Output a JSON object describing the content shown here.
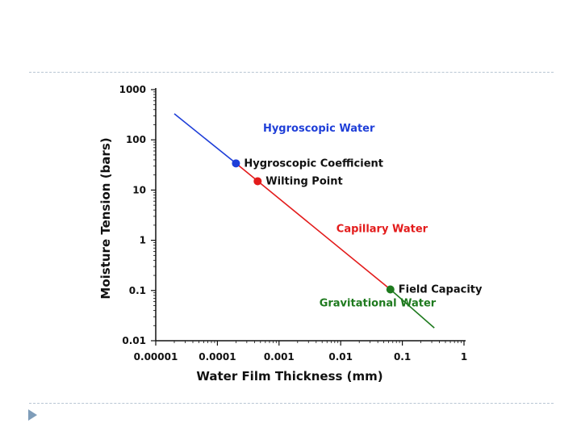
{
  "slide": {
    "bullet_color": "#7f9db9",
    "rule_color": "#b9c6d3",
    "bullet_icon": "triangle-right-icon"
  },
  "chart_data": {
    "type": "line",
    "title": "",
    "xlabel": "Water Film Thickness (mm)",
    "ylabel": "Moisture Tension (bars)",
    "x_scale": "log",
    "y_scale": "log",
    "xlim": [
      1e-05,
      1
    ],
    "ylim": [
      0.01,
      1000
    ],
    "x_ticks": [
      1e-05,
      0.0001,
      0.001,
      0.01,
      0.1,
      1
    ],
    "x_tick_labels": [
      "0.00001",
      "0.0001",
      "0.001",
      "0.01",
      "0.1",
      "1"
    ],
    "y_ticks": [
      0.01,
      0.1,
      1,
      10,
      100,
      1000
    ],
    "y_tick_labels": [
      "0.01",
      "0.1",
      "1",
      "10",
      "100",
      "1000"
    ],
    "grid": false,
    "series": [
      {
        "name": "Hygroscopic Water",
        "color": "#1f3fd8",
        "x": [
          2e-05,
          0.0002
        ],
        "y": [
          330,
          34
        ]
      },
      {
        "name": "Capillary Water",
        "color": "#e31b1b",
        "x": [
          0.0002,
          0.064
        ],
        "y": [
          34,
          0.105
        ]
      },
      {
        "name": "Gravitational Water",
        "color": "#1e7a1e",
        "x": [
          0.064,
          0.33
        ],
        "y": [
          0.105,
          0.018
        ]
      }
    ],
    "points": [
      {
        "label": "Hygroscopic Coefficient",
        "x": 0.0002,
        "y": 34,
        "color": "#1f3fd8"
      },
      {
        "label": "Wilting Point",
        "x": 0.00045,
        "y": 15,
        "color": "#e31b1b"
      },
      {
        "label": "Field Capacity",
        "x": 0.064,
        "y": 0.105,
        "color": "#1e7a1e"
      }
    ],
    "annotations": [
      {
        "text": "Hygroscopic Water",
        "x": 0.00055,
        "y": 145,
        "color": "#1f3fd8"
      },
      {
        "text": "Capillary Water",
        "x": 0.0085,
        "y": 1.45,
        "color": "#e31b1b"
      },
      {
        "text": "Gravitational Water",
        "x": 0.0045,
        "y": 0.048,
        "color": "#1e7a1e"
      }
    ],
    "axis_color": "#111111"
  }
}
